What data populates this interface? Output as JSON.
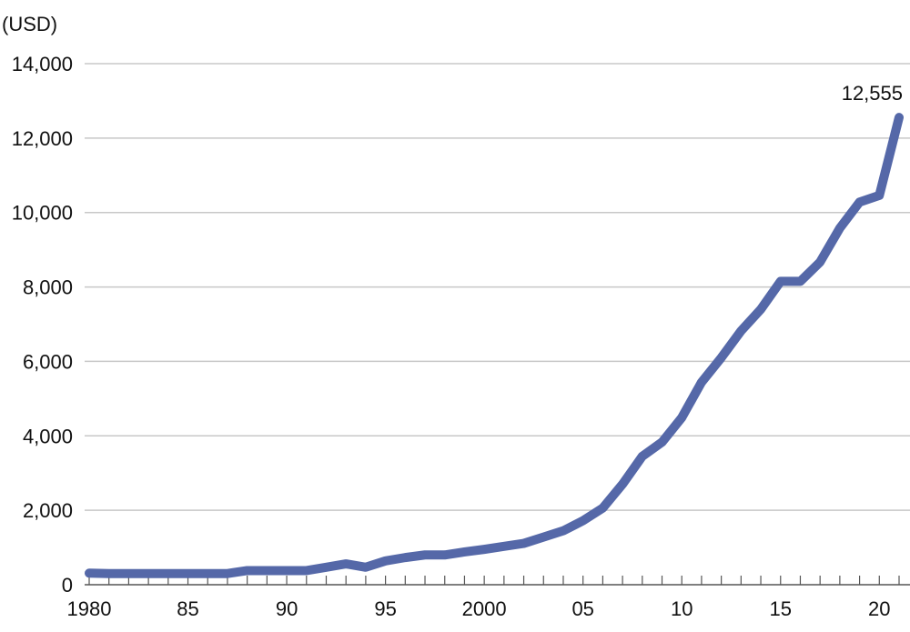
{
  "chart_data": {
    "type": "line",
    "unit_label": "(USD)",
    "x": [
      1980,
      1981,
      1982,
      1983,
      1984,
      1985,
      1986,
      1987,
      1988,
      1989,
      1990,
      1991,
      1992,
      1993,
      1994,
      1995,
      1996,
      1997,
      1998,
      1999,
      2000,
      2001,
      2002,
      2003,
      2004,
      2005,
      2006,
      2007,
      2008,
      2009,
      2010,
      2011,
      2012,
      2013,
      2014,
      2015,
      2016,
      2017,
      2018,
      2019,
      2020,
      2021
    ],
    "series": [
      {
        "values": [
          310,
          300,
          300,
          300,
          300,
          300,
          300,
          300,
          380,
          380,
          380,
          380,
          470,
          560,
          470,
          640,
          730,
          800,
          800,
          880,
          950,
          1030,
          1110,
          1280,
          1450,
          1720,
          2060,
          2700,
          3450,
          3830,
          4490,
          5440,
          6100,
          6820,
          7400,
          8150,
          8150,
          8670,
          9580,
          10280,
          10460,
          12555
        ],
        "color": "#5568a8"
      }
    ],
    "end_label": "12,555",
    "xlim": [
      1980,
      2021
    ],
    "ylim": [
      0,
      14000
    ],
    "y_ticks": [
      0,
      2000,
      4000,
      6000,
      8000,
      10000,
      12000,
      14000
    ],
    "y_tick_labels": [
      "0",
      "2,000",
      "4,000",
      "6,000",
      "8,000",
      "10,000",
      "12,000",
      "14,000"
    ],
    "x_ticks": [
      1980,
      1985,
      1990,
      1995,
      2000,
      2005,
      2010,
      2015,
      2020
    ],
    "x_tick_labels": [
      "1980",
      "85",
      "90",
      "95",
      "2000",
      "05",
      "10",
      "15",
      "20"
    ],
    "grid": true,
    "gridline_color": "#c8c8c8",
    "axis_color": "#555555"
  }
}
